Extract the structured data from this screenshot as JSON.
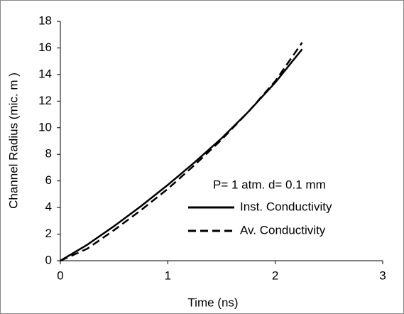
{
  "chart_data": {
    "type": "line",
    "x_label": "Time (ns)",
    "y_label": "Channel Radius (mic. m )",
    "annotation": "P= 1 atm. d= 0.1 mm",
    "x": [
      0,
      0.25,
      0.5,
      0.75,
      1,
      1.25,
      1.5,
      1.75,
      2,
      2.25
    ],
    "series": [
      {
        "name": "Inst. Conductivity",
        "color": "#000000",
        "line_style": "solid",
        "values": [
          0,
          1.2,
          2.6,
          4.1,
          5.7,
          7.4,
          9.2,
          11.2,
          13.4,
          15.9
        ]
      },
      {
        "name": "Av. Conductivity",
        "color": "#000000",
        "line_style": "dashed",
        "values": [
          0,
          0.9,
          2.3,
          3.8,
          5.4,
          7.2,
          9.1,
          11.2,
          13.5,
          16.4
        ]
      }
    ],
    "xlim": [
      0,
      3
    ],
    "xticks": [
      0,
      1,
      2,
      3
    ],
    "ylim": [
      0,
      18
    ],
    "yticks": [
      0,
      2,
      4,
      6,
      8,
      10,
      12,
      14,
      16,
      18
    ],
    "grid": false
  }
}
